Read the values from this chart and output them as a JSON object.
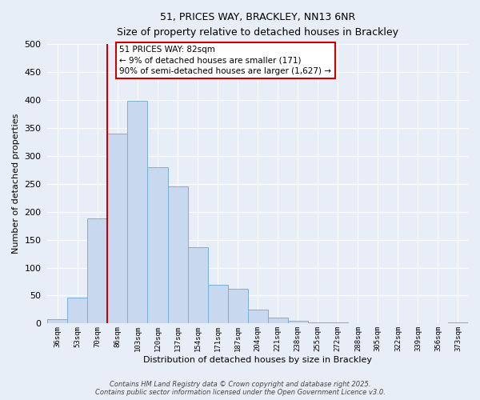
{
  "title": "51, PRICES WAY, BRACKLEY, NN13 6NR",
  "subtitle": "Size of property relative to detached houses in Brackley",
  "xlabel": "Distribution of detached houses by size in Brackley",
  "ylabel": "Number of detached properties",
  "bar_color": "#c8d9ef",
  "bar_edge_color": "#7bafd4",
  "categories": [
    "36sqm",
    "53sqm",
    "70sqm",
    "86sqm",
    "103sqm",
    "120sqm",
    "137sqm",
    "154sqm",
    "171sqm",
    "187sqm",
    "204sqm",
    "221sqm",
    "238sqm",
    "255sqm",
    "272sqm",
    "288sqm",
    "305sqm",
    "322sqm",
    "339sqm",
    "356sqm",
    "373sqm"
  ],
  "values": [
    8,
    47,
    188,
    340,
    398,
    280,
    246,
    137,
    70,
    62,
    25,
    10,
    5,
    2,
    2,
    0,
    0,
    0,
    0,
    0,
    2
  ],
  "ylim": [
    0,
    500
  ],
  "yticks": [
    0,
    50,
    100,
    150,
    200,
    250,
    300,
    350,
    400,
    450,
    500
  ],
  "vline_color": "#cc0000",
  "annotation_box_title": "51 PRICES WAY: 82sqm",
  "annotation_line1": "← 9% of detached houses are smaller (171)",
  "annotation_line2": "90% of semi-detached houses are larger (1,627) →",
  "annotation_box_color": "#ffffff",
  "annotation_box_edge_color": "#cc0000",
  "footer_line1": "Contains HM Land Registry data © Crown copyright and database right 2025.",
  "footer_line2": "Contains public sector information licensed under the Open Government Licence v3.0.",
  "background_color": "#e8eef8",
  "grid_color": "#ffffff"
}
